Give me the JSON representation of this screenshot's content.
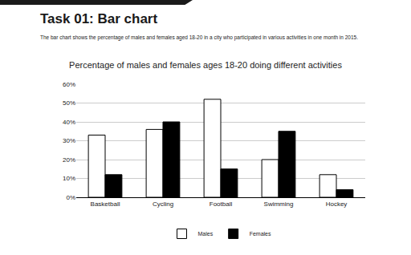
{
  "header": {
    "title": "Task 01: Bar chart",
    "description": "The bar chart shows the percentage of males and females aged 18-20 in a city who participated in various activities in one month in 2015."
  },
  "chart_data": {
    "type": "bar",
    "title": "Percentage of males and females ages 18-20 doing different activities",
    "categories": [
      "Basketball",
      "Cycling",
      "Football",
      "Swimming",
      "Hockey"
    ],
    "series": [
      {
        "name": "Males",
        "color": "#ffffff",
        "values": [
          33,
          36,
          52,
          20,
          12
        ]
      },
      {
        "name": "Females",
        "color": "#000000",
        "values": [
          12,
          40,
          15,
          35,
          4
        ]
      }
    ],
    "ylim": [
      0,
      60
    ],
    "yticks": [
      {
        "value": 0,
        "label": "0%"
      },
      {
        "value": 10,
        "label": "10%"
      },
      {
        "value": 20,
        "label": "20%"
      },
      {
        "value": 30,
        "label": "30%"
      },
      {
        "value": 40,
        "label": "40%"
      },
      {
        "value": 50,
        "label": "50%"
      },
      {
        "value": 60,
        "label": "60%"
      }
    ],
    "grid": true,
    "legend": "bottom"
  }
}
